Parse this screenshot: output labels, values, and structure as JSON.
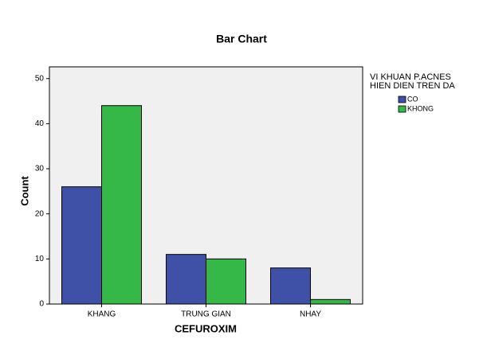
{
  "chart_data": {
    "type": "bar",
    "title": "Bar Chart",
    "x_label": "CEFUROXIM",
    "y_label": "Count",
    "legend_title": [
      "VI KHUAN P.ACNES",
      "HIEN DIEN TREN DA"
    ],
    "categories": [
      "KHANG",
      "TRUNG GIAN",
      "NHAY"
    ],
    "series": [
      {
        "name": "CO",
        "color": "#3f51a6",
        "values": [
          26,
          11,
          8
        ]
      },
      {
        "name": "KHONG",
        "color": "#35b848",
        "values": [
          44,
          10,
          1
        ]
      }
    ],
    "ylim": [
      0,
      52.6
    ],
    "yticks": [
      0,
      10,
      20,
      30,
      40,
      50
    ]
  }
}
